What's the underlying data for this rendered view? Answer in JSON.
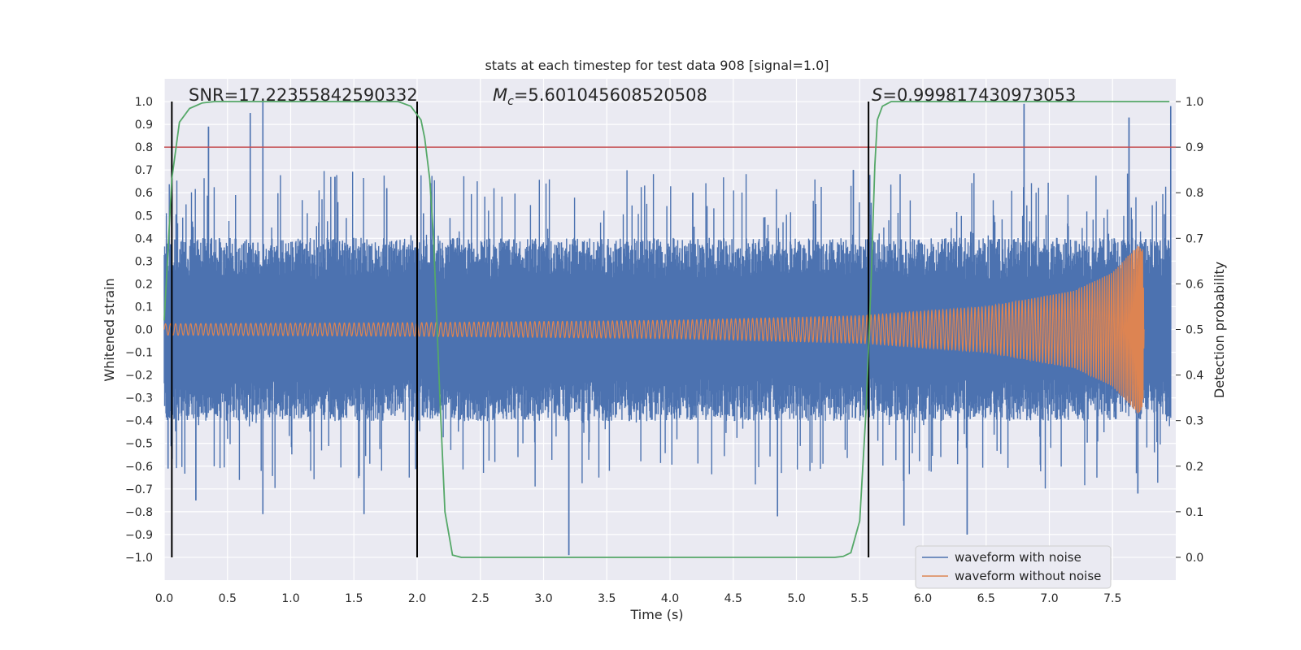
{
  "chart_data": {
    "type": "line",
    "title": "stats at each timestep for test data 908 [signal=1.0]",
    "xlabel": "Time (s)",
    "ylabel": "Whitened strain",
    "y2label": "Detection probability",
    "xlim": [
      0.0,
      8.0
    ],
    "ylim": [
      -1.1,
      1.1
    ],
    "y2lim": [
      -0.05,
      1.05
    ],
    "xticks": [
      "0.0",
      "0.5",
      "1.0",
      "1.5",
      "2.0",
      "2.5",
      "3.0",
      "3.5",
      "4.0",
      "4.5",
      "5.0",
      "5.5",
      "6.0",
      "6.5",
      "7.0",
      "7.5"
    ],
    "xtick_values": [
      0.0,
      0.5,
      1.0,
      1.5,
      2.0,
      2.5,
      3.0,
      3.5,
      4.0,
      4.5,
      5.0,
      5.5,
      6.0,
      6.5,
      7.0,
      7.5
    ],
    "yticks": [
      "1.0",
      "0.9",
      "0.8",
      "0.7",
      "0.6",
      "0.5",
      "0.4",
      "0.3",
      "0.2",
      "0.1",
      "0.0",
      "−0.1",
      "−0.2",
      "−0.3",
      "−0.4",
      "−0.5",
      "−0.6",
      "−0.7",
      "−0.8",
      "−0.9",
      "−1.0"
    ],
    "ytick_values": [
      1.0,
      0.9,
      0.8,
      0.7,
      0.6,
      0.5,
      0.4,
      0.3,
      0.2,
      0.1,
      0.0,
      -0.1,
      -0.2,
      -0.3,
      -0.4,
      -0.5,
      -0.6,
      -0.7,
      -0.8,
      -0.9,
      -1.0
    ],
    "y2ticks": [
      "1.0",
      "0.9",
      "0.8",
      "0.7",
      "0.6",
      "0.5",
      "0.4",
      "0.3",
      "0.2",
      "0.1",
      "0.0"
    ],
    "y2tick_values": [
      1.0,
      0.9,
      0.8,
      0.7,
      0.6,
      0.5,
      0.4,
      0.3,
      0.2,
      0.1,
      0.0
    ],
    "grid": true,
    "legend_placement": "lower-right",
    "series": [
      {
        "name": "waveform with noise",
        "color": "#4c72b0",
        "description_values": {
          "typical_envelope": 0.35,
          "peak_max": 1.0,
          "peak_min": -1.0
        },
        "peaks": [
          {
            "x": 0.35,
            "y": 0.89
          },
          {
            "x": 0.68,
            "y": 0.95
          },
          {
            "x": 0.78,
            "y": 1.0
          },
          {
            "x": 1.35,
            "y": 0.67
          },
          {
            "x": 1.76,
            "y": 0.62
          },
          {
            "x": 2.05,
            "y": 0.51
          },
          {
            "x": 4.18,
            "y": 0.6
          },
          {
            "x": 5.45,
            "y": 0.7
          },
          {
            "x": 6.8,
            "y": 0.99
          },
          {
            "x": 7.63,
            "y": 0.93
          },
          {
            "x": 7.96,
            "y": 0.98
          },
          {
            "x": 0.03,
            "y": -0.61
          },
          {
            "x": 0.25,
            "y": -0.75
          },
          {
            "x": 0.78,
            "y": -0.81
          },
          {
            "x": 1.58,
            "y": -0.81
          },
          {
            "x": 3.2,
            "y": -0.99
          },
          {
            "x": 4.85,
            "y": -0.82
          },
          {
            "x": 5.85,
            "y": -0.86
          },
          {
            "x": 6.35,
            "y": -0.9
          },
          {
            "x": 7.7,
            "y": -0.72
          }
        ]
      },
      {
        "name": "waveform without noise",
        "color": "#dd8452",
        "envelope": [
          {
            "x": 0.0,
            "y": 0.025
          },
          {
            "x": 2.0,
            "y": 0.03
          },
          {
            "x": 4.0,
            "y": 0.04
          },
          {
            "x": 5.5,
            "y": 0.06
          },
          {
            "x": 6.5,
            "y": 0.1
          },
          {
            "x": 7.2,
            "y": 0.17
          },
          {
            "x": 7.5,
            "y": 0.25
          },
          {
            "x": 7.7,
            "y": 0.37
          },
          {
            "x": 7.74,
            "y": 0.35
          },
          {
            "x": 7.75,
            "y": 0.0
          }
        ]
      },
      {
        "name": "detection probability",
        "color": "#55a868",
        "axis": "right",
        "points": [
          {
            "x": 0.0,
            "y": 0.52
          },
          {
            "x": 0.06,
            "y": 0.83
          },
          {
            "x": 0.12,
            "y": 0.955
          },
          {
            "x": 0.2,
            "y": 0.985
          },
          {
            "x": 0.3,
            "y": 0.997
          },
          {
            "x": 0.4,
            "y": 1.0
          },
          {
            "x": 1.85,
            "y": 1.0
          },
          {
            "x": 1.95,
            "y": 0.99
          },
          {
            "x": 2.03,
            "y": 0.96
          },
          {
            "x": 2.06,
            "y": 0.92
          },
          {
            "x": 2.1,
            "y": 0.83
          },
          {
            "x": 2.13,
            "y": 0.7
          },
          {
            "x": 2.18,
            "y": 0.35
          },
          {
            "x": 2.22,
            "y": 0.1
          },
          {
            "x": 2.28,
            "y": 0.005
          },
          {
            "x": 2.35,
            "y": 0.0
          },
          {
            "x": 5.3,
            "y": 0.0
          },
          {
            "x": 5.37,
            "y": 0.002
          },
          {
            "x": 5.43,
            "y": 0.01
          },
          {
            "x": 5.5,
            "y": 0.08
          },
          {
            "x": 5.55,
            "y": 0.32
          },
          {
            "x": 5.59,
            "y": 0.6
          },
          {
            "x": 5.62,
            "y": 0.86
          },
          {
            "x": 5.64,
            "y": 0.96
          },
          {
            "x": 5.68,
            "y": 0.99
          },
          {
            "x": 5.75,
            "y": 1.0
          },
          {
            "x": 7.95,
            "y": 1.0
          }
        ]
      }
    ],
    "reference_lines": {
      "horizontal": [
        {
          "y": 0.8,
          "color": "#c44e52"
        }
      ],
      "vertical": [
        {
          "x": 0.06,
          "color": "#000000"
        },
        {
          "x": 2.0,
          "color": "#000000"
        },
        {
          "x": 5.57,
          "color": "#000000"
        }
      ]
    },
    "annotations": {
      "snr": "SNR=17.22355842590332",
      "mc_symbol": "M",
      "mc_subscript": "c",
      "mc_value": "=5.601045608520508",
      "s_symbol": "S",
      "s_value": "=0.999817430973053"
    }
  }
}
